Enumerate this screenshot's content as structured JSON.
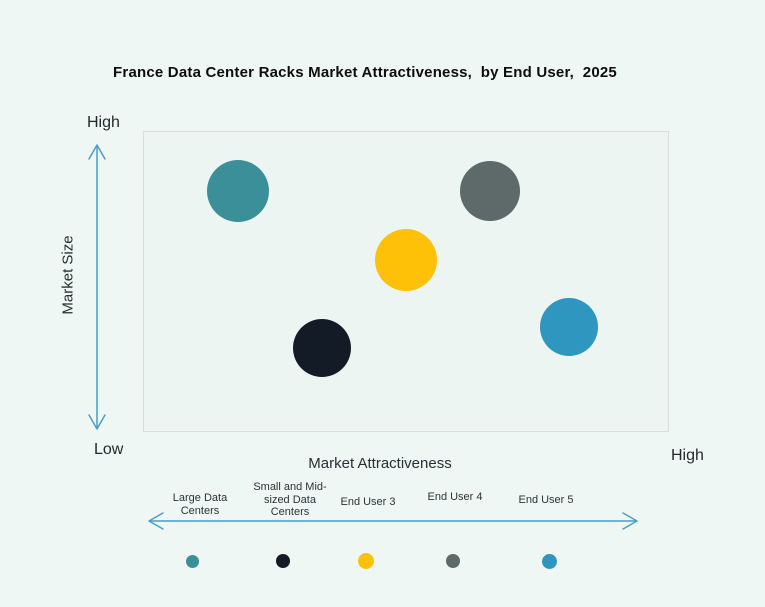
{
  "title": "France Data Center Racks Market Attractiveness,  by End User,  2025",
  "axes": {
    "y_label": "Market Size",
    "y_high_label": "High",
    "y_low_label": "Low",
    "x_label": "Market Attractiveness",
    "x_high_label": "High"
  },
  "colors": {
    "background": "#eef7f3",
    "plot_background": "#edf5f2",
    "plot_border": "#d9dedd",
    "arrow": "#4f9bc5",
    "title_text": "#0d0d0d"
  },
  "chart_data": {
    "type": "scatter",
    "subtype": "bubble",
    "title": "France Data Center Racks Market Attractiveness, by End User, 2025",
    "xlabel": "Market Attractiveness",
    "ylabel": "Market Size",
    "xlim": [
      0,
      1
    ],
    "ylim": [
      0,
      1
    ],
    "axis_note": "Qualitative axes from Low to High; point values estimated as axis fractions",
    "grid": false,
    "legend_position": "bottom",
    "series": [
      {
        "name": "Large Data Centers",
        "x": 0.18,
        "y": 0.8,
        "r": 31,
        "color": "#3a8f99"
      },
      {
        "name": "Small and Mid-sized Data Centers",
        "x": 0.34,
        "y": 0.28,
        "r": 29,
        "color": "#131c26"
      },
      {
        "name": "End User 3",
        "x": 0.5,
        "y": 0.57,
        "r": 31,
        "color": "#ffc107"
      },
      {
        "name": "End User 4",
        "x": 0.66,
        "y": 0.8,
        "r": 30,
        "color": "#5d6a69"
      },
      {
        "name": "End User 5",
        "x": 0.81,
        "y": 0.35,
        "r": 29,
        "color": "#2f97bf"
      }
    ]
  }
}
